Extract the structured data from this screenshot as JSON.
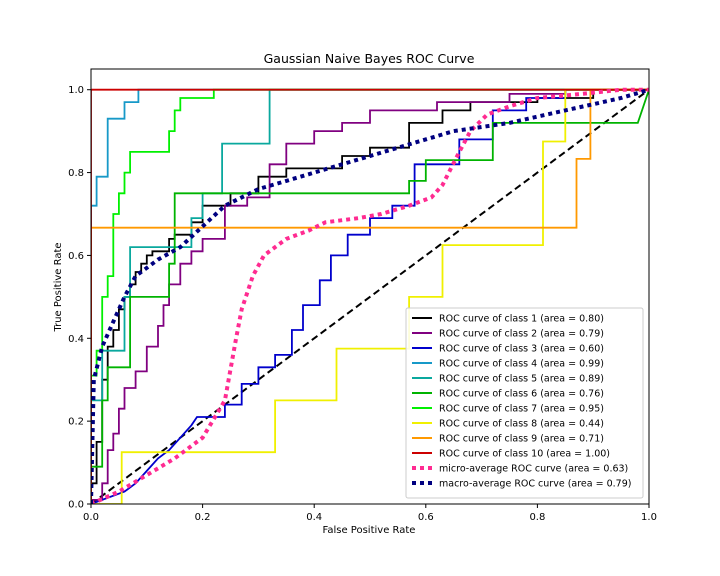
{
  "chart_data": {
    "type": "line",
    "title": "Gaussian Naive Bayes ROC Curve",
    "xlabel": "False Positive Rate",
    "ylabel": "True Positive Rate",
    "xlim": [
      0.0,
      1.0
    ],
    "ylim": [
      0.0,
      1.05
    ],
    "x_ticks": [
      "0.0",
      "0.2",
      "0.4",
      "0.6",
      "0.8",
      "1.0"
    ],
    "y_ticks": [
      "0.0",
      "0.2",
      "0.4",
      "0.6",
      "0.8",
      "1.0"
    ],
    "grid": false,
    "legend_position": "lower-right",
    "diagonal": {
      "points": [
        [
          0,
          0
        ],
        [
          1,
          1
        ]
      ],
      "color": "#000000",
      "style": "dashed"
    },
    "series": [
      {
        "name": "ROC curve of class 1 (area = 0.80)",
        "color": "#000000",
        "style": "solid",
        "points": [
          [
            0,
            0
          ],
          [
            0,
            0.05
          ],
          [
            0.01,
            0.05
          ],
          [
            0.01,
            0.15
          ],
          [
            0.02,
            0.15
          ],
          [
            0.02,
            0.3
          ],
          [
            0.03,
            0.3
          ],
          [
            0.03,
            0.38
          ],
          [
            0.04,
            0.38
          ],
          [
            0.04,
            0.42
          ],
          [
            0.05,
            0.42
          ],
          [
            0.05,
            0.47
          ],
          [
            0.06,
            0.47
          ],
          [
            0.06,
            0.5
          ],
          [
            0.07,
            0.5
          ],
          [
            0.07,
            0.53
          ],
          [
            0.08,
            0.53
          ],
          [
            0.08,
            0.56
          ],
          [
            0.09,
            0.56
          ],
          [
            0.09,
            0.58
          ],
          [
            0.1,
            0.58
          ],
          [
            0.1,
            0.6
          ],
          [
            0.11,
            0.6
          ],
          [
            0.11,
            0.61
          ],
          [
            0.14,
            0.61
          ],
          [
            0.14,
            0.64
          ],
          [
            0.15,
            0.64
          ],
          [
            0.15,
            0.65
          ],
          [
            0.18,
            0.65
          ],
          [
            0.18,
            0.68
          ],
          [
            0.2,
            0.68
          ],
          [
            0.2,
            0.72
          ],
          [
            0.25,
            0.72
          ],
          [
            0.25,
            0.75
          ],
          [
            0.3,
            0.75
          ],
          [
            0.3,
            0.79
          ],
          [
            0.35,
            0.79
          ],
          [
            0.35,
            0.81
          ],
          [
            0.45,
            0.81
          ],
          [
            0.45,
            0.84
          ],
          [
            0.5,
            0.84
          ],
          [
            0.5,
            0.86
          ],
          [
            0.57,
            0.86
          ],
          [
            0.57,
            0.92
          ],
          [
            0.63,
            0.92
          ],
          [
            0.63,
            0.95
          ],
          [
            0.68,
            0.95
          ],
          [
            0.68,
            0.97
          ],
          [
            0.8,
            0.97
          ],
          [
            0.8,
            0.98
          ],
          [
            0.9,
            0.98
          ],
          [
            0.9,
            1.0
          ],
          [
            1,
            1
          ]
        ]
      },
      {
        "name": "ROC curve of class 2 (area = 0.79)",
        "color": "#800080",
        "style": "solid",
        "points": [
          [
            0,
            0
          ],
          [
            0,
            0.01
          ],
          [
            0.02,
            0.01
          ],
          [
            0.02,
            0.05
          ],
          [
            0.03,
            0.05
          ],
          [
            0.03,
            0.13
          ],
          [
            0.04,
            0.13
          ],
          [
            0.04,
            0.17
          ],
          [
            0.05,
            0.17
          ],
          [
            0.05,
            0.23
          ],
          [
            0.06,
            0.23
          ],
          [
            0.06,
            0.28
          ],
          [
            0.08,
            0.28
          ],
          [
            0.08,
            0.32
          ],
          [
            0.1,
            0.32
          ],
          [
            0.1,
            0.38
          ],
          [
            0.12,
            0.38
          ],
          [
            0.12,
            0.43
          ],
          [
            0.13,
            0.43
          ],
          [
            0.13,
            0.48
          ],
          [
            0.14,
            0.48
          ],
          [
            0.14,
            0.53
          ],
          [
            0.16,
            0.53
          ],
          [
            0.16,
            0.58
          ],
          [
            0.18,
            0.58
          ],
          [
            0.18,
            0.61
          ],
          [
            0.2,
            0.61
          ],
          [
            0.2,
            0.64
          ],
          [
            0.24,
            0.64
          ],
          [
            0.24,
            0.72
          ],
          [
            0.28,
            0.72
          ],
          [
            0.28,
            0.74
          ],
          [
            0.32,
            0.74
          ],
          [
            0.32,
            0.82
          ],
          [
            0.35,
            0.82
          ],
          [
            0.35,
            0.87
          ],
          [
            0.4,
            0.87
          ],
          [
            0.4,
            0.9
          ],
          [
            0.45,
            0.9
          ],
          [
            0.45,
            0.92
          ],
          [
            0.5,
            0.92
          ],
          [
            0.5,
            0.95
          ],
          [
            0.62,
            0.95
          ],
          [
            0.62,
            0.97
          ],
          [
            0.75,
            0.97
          ],
          [
            0.75,
            0.99
          ],
          [
            0.85,
            0.99
          ],
          [
            0.85,
            1.0
          ],
          [
            1,
            1
          ]
        ]
      },
      {
        "name": "ROC curve of class 3 (area = 0.60)",
        "color": "#0000cc",
        "style": "solid",
        "points": [
          [
            0,
            0
          ],
          [
            0.06,
            0.03
          ],
          [
            0.08,
            0.05
          ],
          [
            0.1,
            0.08
          ],
          [
            0.12,
            0.11
          ],
          [
            0.14,
            0.13
          ],
          [
            0.16,
            0.16
          ],
          [
            0.18,
            0.19
          ],
          [
            0.19,
            0.21
          ],
          [
            0.24,
            0.21
          ],
          [
            0.24,
            0.24
          ],
          [
            0.27,
            0.24
          ],
          [
            0.27,
            0.29
          ],
          [
            0.3,
            0.29
          ],
          [
            0.3,
            0.33
          ],
          [
            0.33,
            0.33
          ],
          [
            0.33,
            0.36
          ],
          [
            0.36,
            0.36
          ],
          [
            0.36,
            0.42
          ],
          [
            0.38,
            0.42
          ],
          [
            0.38,
            0.48
          ],
          [
            0.41,
            0.48
          ],
          [
            0.41,
            0.54
          ],
          [
            0.43,
            0.54
          ],
          [
            0.43,
            0.6
          ],
          [
            0.46,
            0.6
          ],
          [
            0.46,
            0.65
          ],
          [
            0.5,
            0.65
          ],
          [
            0.5,
            0.69
          ],
          [
            0.54,
            0.69
          ],
          [
            0.54,
            0.72
          ],
          [
            0.58,
            0.72
          ],
          [
            0.58,
            0.82
          ],
          [
            0.66,
            0.82
          ],
          [
            0.66,
            0.88
          ],
          [
            0.72,
            0.88
          ],
          [
            0.72,
            0.95
          ],
          [
            0.78,
            0.95
          ],
          [
            0.78,
            0.98
          ],
          [
            0.85,
            0.98
          ],
          [
            0.85,
            1.0
          ],
          [
            1,
            1
          ]
        ]
      },
      {
        "name": "ROC curve of class 4 (area = 0.99)",
        "color": "#1799c8",
        "style": "solid",
        "points": [
          [
            0,
            0
          ],
          [
            0,
            0.72
          ],
          [
            0.01,
            0.72
          ],
          [
            0.01,
            0.79
          ],
          [
            0.03,
            0.79
          ],
          [
            0.03,
            0.93
          ],
          [
            0.06,
            0.93
          ],
          [
            0.06,
            0.97
          ],
          [
            0.085,
            0.97
          ],
          [
            0.085,
            1.0
          ],
          [
            1,
            1
          ]
        ]
      },
      {
        "name": "ROC curve of class 5 (area = 0.89)",
        "color": "#0aa89e",
        "style": "solid",
        "points": [
          [
            0,
            0
          ],
          [
            0,
            0.25
          ],
          [
            0.02,
            0.25
          ],
          [
            0.02,
            0.37
          ],
          [
            0.06,
            0.37
          ],
          [
            0.06,
            0.5
          ],
          [
            0.07,
            0.5
          ],
          [
            0.07,
            0.62
          ],
          [
            0.18,
            0.62
          ],
          [
            0.18,
            0.69
          ],
          [
            0.2,
            0.69
          ],
          [
            0.2,
            0.75
          ],
          [
            0.235,
            0.75
          ],
          [
            0.235,
            0.87
          ],
          [
            0.32,
            0.87
          ],
          [
            0.32,
            1.0
          ],
          [
            1,
            1
          ]
        ]
      },
      {
        "name": "ROC curve of class 6 (area = 0.76)",
        "color": "#00b300",
        "style": "solid",
        "points": [
          [
            0,
            0
          ],
          [
            0,
            0.09
          ],
          [
            0.02,
            0.09
          ],
          [
            0.02,
            0.25
          ],
          [
            0.03,
            0.25
          ],
          [
            0.03,
            0.33
          ],
          [
            0.07,
            0.33
          ],
          [
            0.07,
            0.5
          ],
          [
            0.14,
            0.5
          ],
          [
            0.14,
            0.58
          ],
          [
            0.15,
            0.58
          ],
          [
            0.15,
            0.75
          ],
          [
            0.57,
            0.75
          ],
          [
            0.57,
            0.78
          ],
          [
            0.6,
            0.78
          ],
          [
            0.6,
            0.83
          ],
          [
            0.72,
            0.83
          ],
          [
            0.72,
            0.92
          ],
          [
            0.98,
            0.92
          ],
          [
            1,
            1.0
          ]
        ]
      },
      {
        "name": "ROC curve of class 7 (area = 0.95)",
        "color": "#00f000",
        "style": "solid",
        "points": [
          [
            0,
            0
          ],
          [
            0,
            0.31
          ],
          [
            0.01,
            0.31
          ],
          [
            0.01,
            0.37
          ],
          [
            0.02,
            0.37
          ],
          [
            0.02,
            0.5
          ],
          [
            0.03,
            0.5
          ],
          [
            0.03,
            0.55
          ],
          [
            0.04,
            0.55
          ],
          [
            0.04,
            0.7
          ],
          [
            0.05,
            0.7
          ],
          [
            0.05,
            0.75
          ],
          [
            0.06,
            0.75
          ],
          [
            0.06,
            0.8
          ],
          [
            0.07,
            0.8
          ],
          [
            0.07,
            0.85
          ],
          [
            0.14,
            0.85
          ],
          [
            0.14,
            0.9
          ],
          [
            0.15,
            0.9
          ],
          [
            0.15,
            0.95
          ],
          [
            0.16,
            0.95
          ],
          [
            0.16,
            0.98
          ],
          [
            0.22,
            0.98
          ],
          [
            0.22,
            1.0
          ],
          [
            1,
            1
          ]
        ]
      },
      {
        "name": "ROC curve of class 8 (area = 0.44)",
        "color": "#f0f000",
        "style": "solid",
        "points": [
          [
            0,
            0
          ],
          [
            0.055,
            0
          ],
          [
            0.055,
            0.125
          ],
          [
            0.33,
            0.125
          ],
          [
            0.33,
            0.25
          ],
          [
            0.44,
            0.25
          ],
          [
            0.44,
            0.375
          ],
          [
            0.57,
            0.375
          ],
          [
            0.57,
            0.5
          ],
          [
            0.63,
            0.5
          ],
          [
            0.63,
            0.625
          ],
          [
            0.81,
            0.625
          ],
          [
            0.81,
            0.875
          ],
          [
            0.85,
            0.875
          ],
          [
            0.85,
            1.0
          ],
          [
            1,
            1
          ]
        ]
      },
      {
        "name": "ROC curve of class 9 (area = 0.71)",
        "color": "#ff9900",
        "style": "solid",
        "points": [
          [
            0,
            0
          ],
          [
            0,
            0.667
          ],
          [
            0.87,
            0.667
          ],
          [
            0.87,
            0.833
          ],
          [
            0.895,
            0.833
          ],
          [
            0.895,
            1.0
          ],
          [
            1,
            1
          ]
        ]
      },
      {
        "name": "ROC curve of class 10 (area = 1.00)",
        "color": "#cc0000",
        "style": "solid",
        "points": [
          [
            0,
            0
          ],
          [
            0,
            1.0
          ],
          [
            1,
            1.0
          ]
        ]
      },
      {
        "name": "micro-average ROC curve (area = 0.63)",
        "color": "#ff2b91",
        "style": "dotted",
        "points": [
          [
            0,
            0
          ],
          [
            0.05,
            0.03
          ],
          [
            0.1,
            0.07
          ],
          [
            0.15,
            0.11
          ],
          [
            0.2,
            0.16
          ],
          [
            0.24,
            0.25
          ],
          [
            0.26,
            0.4
          ],
          [
            0.27,
            0.47
          ],
          [
            0.29,
            0.55
          ],
          [
            0.31,
            0.6
          ],
          [
            0.35,
            0.64
          ],
          [
            0.39,
            0.66
          ],
          [
            0.42,
            0.68
          ],
          [
            0.48,
            0.69
          ],
          [
            0.52,
            0.7
          ],
          [
            0.57,
            0.72
          ],
          [
            0.61,
            0.74
          ],
          [
            0.63,
            0.77
          ],
          [
            0.66,
            0.85
          ],
          [
            0.68,
            0.9
          ],
          [
            0.71,
            0.94
          ],
          [
            0.75,
            0.96
          ],
          [
            0.8,
            0.98
          ],
          [
            0.88,
            0.99
          ],
          [
            0.95,
            1.0
          ],
          [
            1,
            1
          ]
        ]
      },
      {
        "name": "macro-average ROC curve (area = 0.79)",
        "color": "#000080",
        "style": "dotted",
        "points": [
          [
            0,
            0
          ],
          [
            0.005,
            0.3
          ],
          [
            0.02,
            0.38
          ],
          [
            0.04,
            0.44
          ],
          [
            0.06,
            0.5
          ],
          [
            0.08,
            0.55
          ],
          [
            0.12,
            0.59
          ],
          [
            0.16,
            0.62
          ],
          [
            0.2,
            0.67
          ],
          [
            0.24,
            0.72
          ],
          [
            0.3,
            0.76
          ],
          [
            0.35,
            0.78
          ],
          [
            0.45,
            0.82
          ],
          [
            0.55,
            0.86
          ],
          [
            0.65,
            0.9
          ],
          [
            0.75,
            0.92
          ],
          [
            0.85,
            0.95
          ],
          [
            0.95,
            0.98
          ],
          [
            1,
            1
          ]
        ]
      }
    ]
  }
}
